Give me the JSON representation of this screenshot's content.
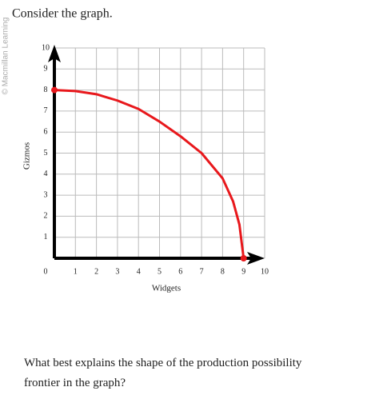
{
  "watermark": "© Macmillan Learning",
  "prompt": "Consider the graph.",
  "question": "What best explains the shape of the production possibility frontier in the graph?",
  "chart_data": {
    "type": "line",
    "x_label": "Widgets",
    "y_label": "Gizmos",
    "series": [
      {
        "name": "PPF",
        "color": "#e8181c",
        "x": [
          0,
          1,
          2,
          3,
          4,
          5,
          6,
          7,
          8,
          8.5,
          8.8,
          9
        ],
        "values": [
          8,
          7.95,
          7.8,
          7.5,
          7.1,
          6.5,
          5.8,
          5.0,
          3.8,
          2.7,
          1.6,
          0
        ]
      }
    ],
    "xlim": [
      0,
      10
    ],
    "ylim": [
      0,
      10
    ],
    "xticks": [
      0,
      1,
      2,
      3,
      4,
      5,
      6,
      7,
      8,
      9,
      10
    ],
    "yticks": [
      1,
      2,
      3,
      4,
      5,
      6,
      7,
      8,
      9,
      10
    ],
    "grid": true
  }
}
